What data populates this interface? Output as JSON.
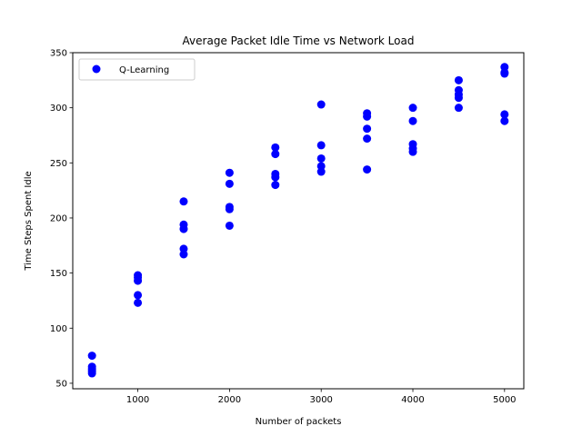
{
  "chart_data": {
    "type": "scatter",
    "title": "Average Packet Idle Time vs Network Load",
    "xlabel": "Number of packets",
    "ylabel": "Time Steps Spent Idle",
    "xlim": [
      290,
      5210
    ],
    "ylim": [
      45,
      350
    ],
    "xticks": [
      1000,
      2000,
      3000,
      4000,
      5000
    ],
    "yticks": [
      50,
      100,
      150,
      200,
      250,
      300,
      350
    ],
    "grid": false,
    "legend_position": "top-left",
    "series": [
      {
        "name": "Q-Learning",
        "color": "#0000ff",
        "points": [
          {
            "x": 500,
            "y": 75
          },
          {
            "x": 500,
            "y": 65
          },
          {
            "x": 500,
            "y": 63
          },
          {
            "x": 500,
            "y": 61
          },
          {
            "x": 500,
            "y": 59
          },
          {
            "x": 1000,
            "y": 148
          },
          {
            "x": 1000,
            "y": 146
          },
          {
            "x": 1000,
            "y": 143
          },
          {
            "x": 1000,
            "y": 130
          },
          {
            "x": 1000,
            "y": 123
          },
          {
            "x": 1500,
            "y": 215
          },
          {
            "x": 1500,
            "y": 194
          },
          {
            "x": 1500,
            "y": 190
          },
          {
            "x": 1500,
            "y": 172
          },
          {
            "x": 1500,
            "y": 167
          },
          {
            "x": 2000,
            "y": 241
          },
          {
            "x": 2000,
            "y": 231
          },
          {
            "x": 2000,
            "y": 210
          },
          {
            "x": 2000,
            "y": 208
          },
          {
            "x": 2000,
            "y": 193
          },
          {
            "x": 2500,
            "y": 264
          },
          {
            "x": 2500,
            "y": 258
          },
          {
            "x": 2500,
            "y": 240
          },
          {
            "x": 2500,
            "y": 237
          },
          {
            "x": 2500,
            "y": 230
          },
          {
            "x": 3000,
            "y": 303
          },
          {
            "x": 3000,
            "y": 266
          },
          {
            "x": 3000,
            "y": 254
          },
          {
            "x": 3000,
            "y": 247
          },
          {
            "x": 3000,
            "y": 242
          },
          {
            "x": 3500,
            "y": 295
          },
          {
            "x": 3500,
            "y": 292
          },
          {
            "x": 3500,
            "y": 281
          },
          {
            "x": 3500,
            "y": 272
          },
          {
            "x": 3500,
            "y": 244
          },
          {
            "x": 4000,
            "y": 300
          },
          {
            "x": 4000,
            "y": 288
          },
          {
            "x": 4000,
            "y": 267
          },
          {
            "x": 4000,
            "y": 263
          },
          {
            "x": 4000,
            "y": 260
          },
          {
            "x": 4500,
            "y": 325
          },
          {
            "x": 4500,
            "y": 316
          },
          {
            "x": 4500,
            "y": 312
          },
          {
            "x": 4500,
            "y": 309
          },
          {
            "x": 4500,
            "y": 300
          },
          {
            "x": 5000,
            "y": 337
          },
          {
            "x": 5000,
            "y": 332
          },
          {
            "x": 5000,
            "y": 331
          },
          {
            "x": 5000,
            "y": 294
          },
          {
            "x": 5000,
            "y": 288
          }
        ]
      }
    ]
  }
}
